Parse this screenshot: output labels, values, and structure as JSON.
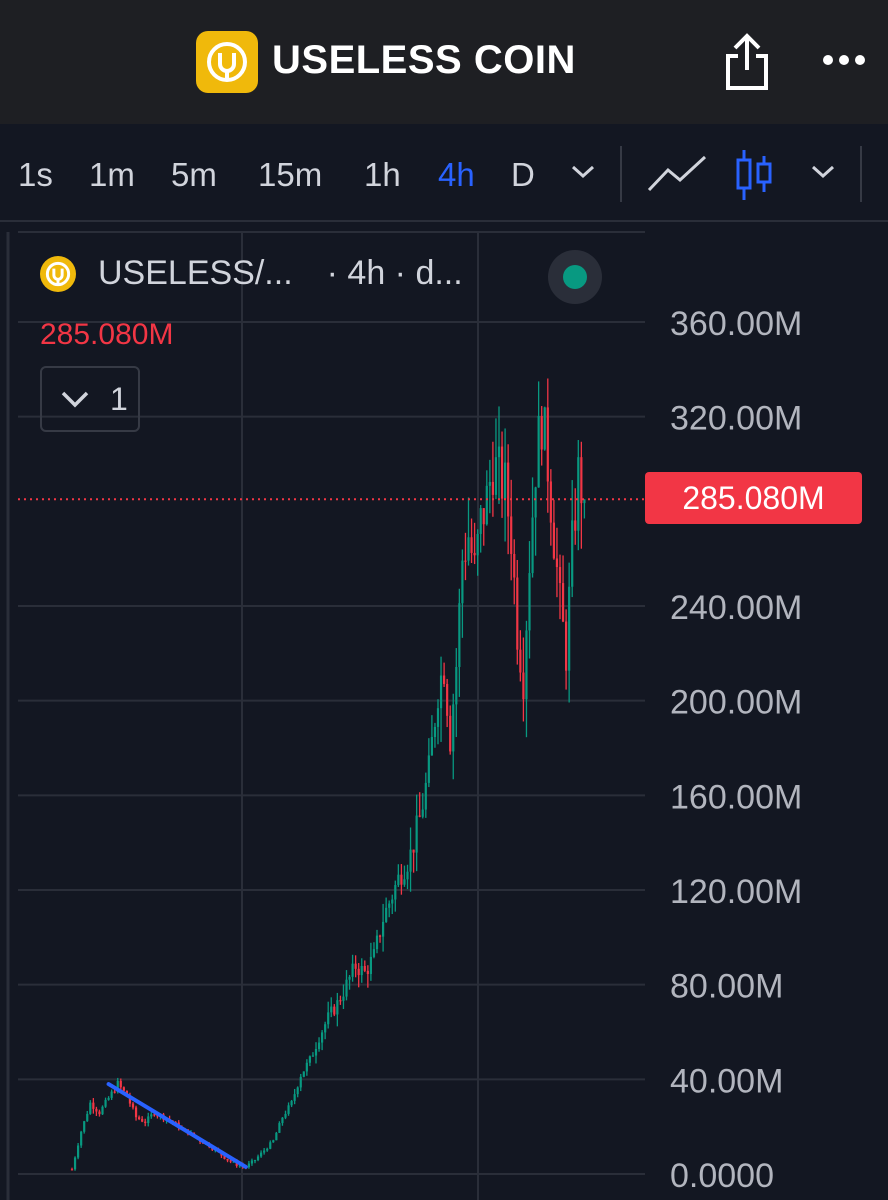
{
  "header": {
    "title": "USELESS COIN",
    "logo_icon": "useless-coin-logo",
    "share_icon": "share-icon",
    "more_icon": "more-icon"
  },
  "toolbar": {
    "timeframes": [
      "1s",
      "1m",
      "5m",
      "15m",
      "1h",
      "4h",
      "D"
    ],
    "active_timeframe": "4h",
    "chart_types": [
      "line-chart-icon",
      "candlestick-icon"
    ],
    "active_color": "#2962ff"
  },
  "legend": {
    "symbol": "USELESS/...",
    "interval": "· 4h · d...",
    "last_price": "285.080M",
    "indicator_count": "1",
    "status_color": "#089981"
  },
  "colors": {
    "up": "#089981",
    "down": "#f23645",
    "trendline": "#2962ff",
    "background": "#131722"
  },
  "chart_data": {
    "type": "candlestick",
    "interval": "4h",
    "y_tick_labels": [
      "360.00M",
      "320.00M",
      "240.00M",
      "200.00M",
      "160.00M",
      "120.00M",
      "80.00M",
      "40.00M",
      "0.0000"
    ],
    "y_ticks": [
      360,
      320,
      240,
      200,
      160,
      120,
      80,
      40,
      0
    ],
    "y_unit": "M",
    "ylim": [
      0,
      360
    ],
    "last_price_label": "285.080M",
    "last_price": 285.08,
    "grid": true,
    "path_points": [
      [
        0,
        2
      ],
      [
        3,
        18
      ],
      [
        6,
        30
      ],
      [
        9,
        26
      ],
      [
        12,
        32
      ],
      [
        15,
        38
      ],
      [
        18,
        33
      ],
      [
        21,
        24
      ],
      [
        24,
        22
      ],
      [
        27,
        26
      ],
      [
        30,
        24
      ],
      [
        33,
        22
      ],
      [
        36,
        19
      ],
      [
        39,
        17
      ],
      [
        42,
        14
      ],
      [
        45,
        12
      ],
      [
        48,
        9
      ],
      [
        51,
        6
      ],
      [
        54,
        4
      ],
      [
        57,
        3
      ],
      [
        60,
        6
      ],
      [
        63,
        10
      ],
      [
        66,
        14
      ],
      [
        69,
        24
      ],
      [
        72,
        30
      ],
      [
        75,
        42
      ],
      [
        78,
        48
      ],
      [
        81,
        58
      ],
      [
        84,
        66
      ],
      [
        87,
        72
      ],
      [
        90,
        80
      ],
      [
        93,
        88
      ],
      [
        96,
        85
      ],
      [
        99,
        92
      ],
      [
        102,
        108
      ],
      [
        105,
        118
      ],
      [
        108,
        128
      ],
      [
        111,
        135
      ],
      [
        114,
        150
      ],
      [
        117,
        170
      ],
      [
        120,
        205
      ],
      [
        122,
        215
      ],
      [
        124,
        185
      ],
      [
        126,
        215
      ],
      [
        128,
        260
      ],
      [
        130,
        270
      ],
      [
        132,
        255
      ],
      [
        134,
        275
      ],
      [
        136,
        285
      ],
      [
        138,
        300
      ],
      [
        140,
        295
      ],
      [
        142,
        290
      ],
      [
        144,
        270
      ],
      [
        146,
        230
      ],
      [
        148,
        210
      ],
      [
        150,
        260
      ],
      [
        152,
        300
      ],
      [
        154,
        320
      ],
      [
        156,
        300
      ],
      [
        158,
        270
      ],
      [
        160,
        240
      ],
      [
        162,
        220
      ],
      [
        164,
        265
      ],
      [
        166,
        295
      ],
      [
        168,
        285
      ]
    ],
    "trendline": {
      "from": [
        12,
        38
      ],
      "to": [
        57,
        3
      ]
    }
  }
}
